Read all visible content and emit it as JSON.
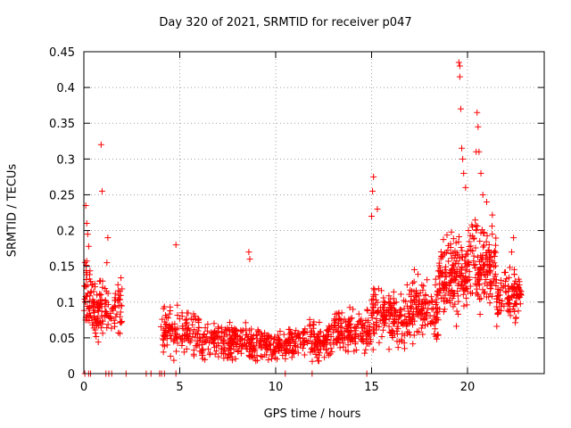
{
  "chart_data": {
    "type": "scatter",
    "title": "Day 320 of 2021, SRMTID for receiver p047",
    "xlabel": "GPS time / hours",
    "ylabel": "SRMTID / TECUs",
    "xlim": [
      0,
      24
    ],
    "ylim": [
      0,
      0.45
    ],
    "xticks": [
      0,
      5,
      10,
      15,
      20
    ],
    "xtick_labels": [
      "0",
      "5",
      "10",
      "15",
      "20"
    ],
    "yticks": [
      0,
      0.05,
      0.1,
      0.15,
      0.2,
      0.25,
      0.3,
      0.35,
      0.4,
      0.45
    ],
    "ytick_labels": [
      "0",
      "0.05",
      "0.1",
      "0.15",
      "0.2",
      "0.25",
      "0.3",
      "0.35",
      "0.4",
      "0.45"
    ],
    "grid": true,
    "marker": "+",
    "color": "#ff0000",
    "series": [
      {
        "name": "SRMTID",
        "segments": [
          {
            "x_start": 0.0,
            "x_end": 0.4,
            "center": 0.11,
            "spread": 0.06,
            "count": 40
          },
          {
            "x_start": 0.4,
            "x_end": 1.0,
            "center": 0.09,
            "spread": 0.05,
            "count": 70
          },
          {
            "x_start": 1.1,
            "x_end": 2.0,
            "center": 0.09,
            "spread": 0.04,
            "count": 60
          },
          {
            "x_start": 4.0,
            "x_end": 6.0,
            "center": 0.06,
            "spread": 0.04,
            "count": 130
          },
          {
            "x_start": 6.0,
            "x_end": 8.5,
            "center": 0.045,
            "spread": 0.03,
            "count": 170
          },
          {
            "x_start": 8.5,
            "x_end": 10.5,
            "center": 0.04,
            "spread": 0.025,
            "count": 140
          },
          {
            "x_start": 10.5,
            "x_end": 13.0,
            "center": 0.045,
            "spread": 0.03,
            "count": 170
          },
          {
            "x_start": 13.0,
            "x_end": 15.0,
            "center": 0.06,
            "spread": 0.035,
            "count": 150
          },
          {
            "x_start": 15.0,
            "x_end": 17.0,
            "center": 0.08,
            "spread": 0.045,
            "count": 170
          },
          {
            "x_start": 17.0,
            "x_end": 18.5,
            "center": 0.09,
            "spread": 0.05,
            "count": 130
          },
          {
            "x_start": 18.5,
            "x_end": 20.0,
            "center": 0.14,
            "spread": 0.06,
            "count": 170
          },
          {
            "x_start": 20.0,
            "x_end": 21.5,
            "center": 0.15,
            "spread": 0.07,
            "count": 150
          },
          {
            "x_start": 21.5,
            "x_end": 22.8,
            "center": 0.11,
            "spread": 0.04,
            "count": 110
          }
        ],
        "outliers": [
          [
            0.1,
            0.235
          ],
          [
            0.15,
            0.21
          ],
          [
            0.2,
            0.195
          ],
          [
            0.25,
            0.178
          ],
          [
            0.9,
            0.32
          ],
          [
            0.95,
            0.255
          ],
          [
            1.25,
            0.19
          ],
          [
            1.2,
            0.155
          ],
          [
            4.8,
            0.18
          ],
          [
            8.6,
            0.17
          ],
          [
            8.65,
            0.16
          ],
          [
            15.1,
            0.275
          ],
          [
            15.05,
            0.255
          ],
          [
            15.3,
            0.23
          ],
          [
            15.0,
            0.22
          ],
          [
            19.55,
            0.435
          ],
          [
            19.6,
            0.43
          ],
          [
            19.6,
            0.415
          ],
          [
            19.65,
            0.37
          ],
          [
            19.7,
            0.315
          ],
          [
            19.75,
            0.3
          ],
          [
            19.8,
            0.28
          ],
          [
            19.9,
            0.26
          ],
          [
            20.05,
            0.2
          ],
          [
            20.5,
            0.365
          ],
          [
            20.55,
            0.345
          ],
          [
            20.45,
            0.31
          ],
          [
            20.6,
            0.31
          ],
          [
            20.7,
            0.28
          ],
          [
            20.8,
            0.25
          ],
          [
            21.0,
            0.24
          ],
          [
            22.4,
            0.19
          ],
          [
            22.3,
            0.17
          ]
        ],
        "zeros": [
          0.05,
          0.25,
          0.35,
          1.15,
          1.3,
          1.45,
          2.2,
          3.25,
          3.5,
          3.95,
          4.05,
          4.2,
          4.8,
          10.5,
          11.9,
          14.75
        ]
      }
    ]
  }
}
